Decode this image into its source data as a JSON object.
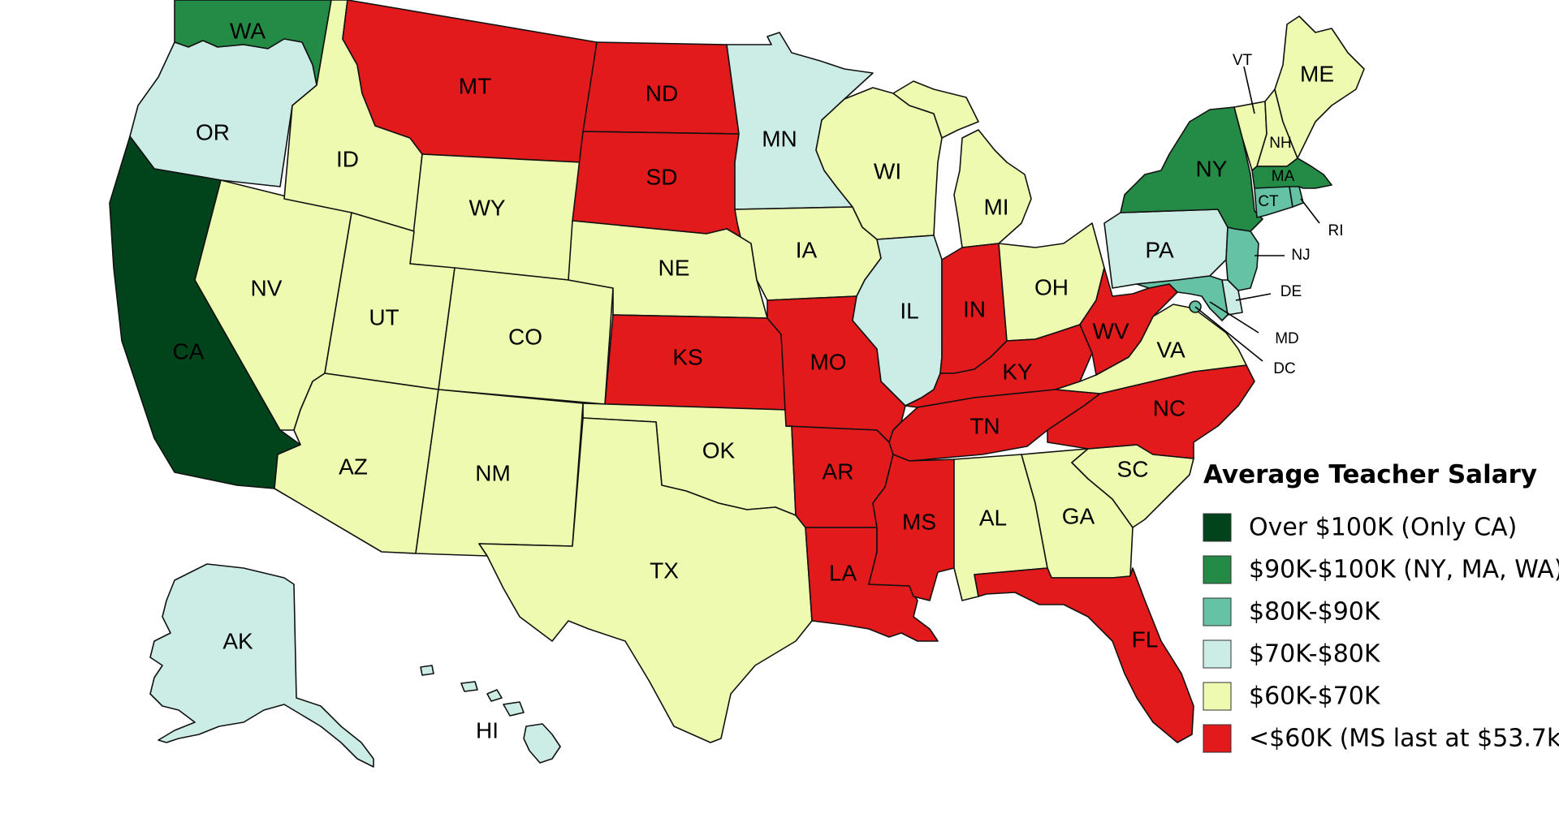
{
  "map": {
    "legend_title": "Average Teacher Salary",
    "legend": [
      {
        "label": "Over $100K (Only CA)",
        "color": "#01441b"
      },
      {
        "label": "$90K-$100K (NY, MA, WA)",
        "color": "#238b45"
      },
      {
        "label": "$80K-$90K",
        "color": "#66c2a4"
      },
      {
        "label": "$70K-$80K",
        "color": "#ccece6"
      },
      {
        "label": "$60K-$70K",
        "color": "#eefaaf"
      },
      {
        "label": "<$60K (MS last at $53.7k)",
        "color": "#e31a1c"
      }
    ],
    "states": {
      "WA": "WA",
      "OR": "OR",
      "CA": "CA",
      "ID": "ID",
      "NV": "NV",
      "MT": "MT",
      "WY": "WY",
      "UT": "UT",
      "AZ": "AZ",
      "CO": "CO",
      "NM": "NM",
      "ND": "ND",
      "SD": "SD",
      "NE": "NE",
      "KS": "KS",
      "OK": "OK",
      "TX": "TX",
      "MN": "MN",
      "IA": "IA",
      "MO": "MO",
      "AR": "AR",
      "LA": "LA",
      "WI": "WI",
      "IL": "IL",
      "MI": "MI",
      "IN": "IN",
      "OH": "OH",
      "KY": "KY",
      "TN": "TN",
      "MS": "MS",
      "AL": "AL",
      "GA": "GA",
      "FL": "FL",
      "SC": "SC",
      "NC": "NC",
      "VA": "VA",
      "WV": "WV",
      "PA": "PA",
      "NY": "NY",
      "VT": "VT",
      "NH": "NH",
      "ME": "ME",
      "MA": "MA",
      "RI": "RI",
      "CT": "CT",
      "NJ": "NJ",
      "DE": "DE",
      "MD": "MD",
      "DC": "DC",
      "AK": "AK",
      "HI": "HI"
    }
  }
}
